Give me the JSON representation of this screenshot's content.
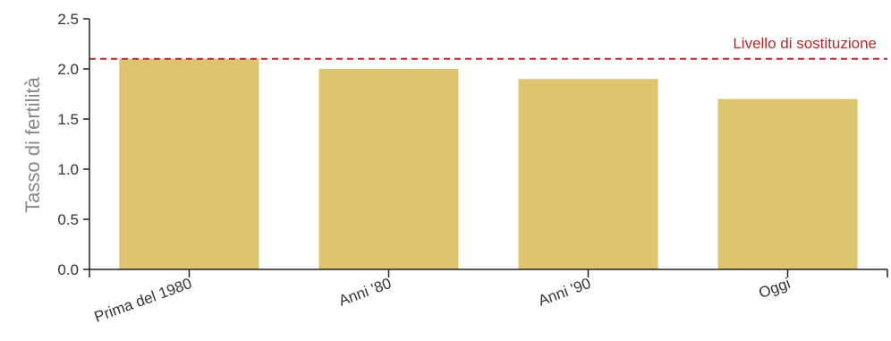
{
  "chart_data": {
    "type": "bar",
    "categories": [
      "Prima del 1980",
      "Anni '80",
      "Anni '90",
      "Oggi"
    ],
    "values": [
      2.1,
      2.0,
      1.9,
      1.7
    ],
    "title": "",
    "xlabel": "",
    "ylabel": "Tasso di fertilità",
    "ylim": [
      0,
      2.5
    ],
    "yticks": [
      0.0,
      0.5,
      1.0,
      1.5,
      2.0,
      2.5
    ],
    "reference_line": {
      "label": "Livello di sostituzione",
      "value": 2.1,
      "style": "dashed"
    },
    "grid": false,
    "colors": {
      "bar": "#dfc46f",
      "reference": "#b22a2a",
      "axis": "#222222"
    }
  }
}
